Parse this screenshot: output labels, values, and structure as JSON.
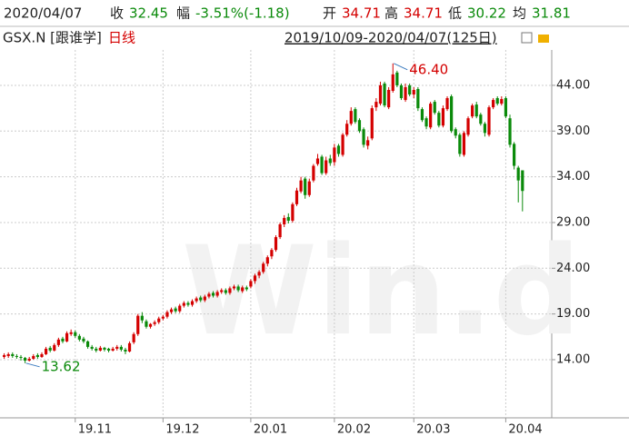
{
  "header": {
    "date": "2020/04/07",
    "items": [
      {
        "label": "收",
        "value": 32.45
      },
      {
        "label": "幅",
        "value": "-3.51%(-1.18)"
      },
      {
        "label": "开",
        "value": 34.71
      },
      {
        "label": "高",
        "value": 34.71
      },
      {
        "label": "低",
        "value": 30.22
      },
      {
        "label": "均",
        "value": 31.81
      }
    ],
    "symbol": "GSX.N [跟谁学]",
    "period": "日线",
    "range": "2019/10/09-2020/04/07(125日)"
  },
  "chart_data": {
    "type": "candlestick",
    "watermark": "Win.d",
    "open": [
      14.3,
      14.4,
      14.6,
      14.4,
      14.3,
      14.2,
      13.9,
      14.1,
      14.5,
      14.3,
      14.6,
      15.3,
      15.0,
      15.6,
      16.3,
      16.0,
      16.8,
      17.0,
      16.6,
      16.3,
      16.0,
      15.4,
      15.2,
      15.0,
      15.3,
      15.2,
      15.0,
      15.2,
      15.4,
      15.1,
      14.9,
      15.9,
      16.8,
      18.8,
      18.2,
      17.6,
      17.9,
      18.1,
      18.5,
      18.7,
      19.2,
      19.6,
      19.3,
      19.9,
      20.2,
      20.0,
      20.4,
      20.8,
      20.5,
      20.9,
      21.3,
      21.0,
      21.4,
      21.6,
      21.3,
      21.8,
      22.0,
      21.5,
      21.9,
      22.0,
      22.6,
      23.2,
      23.6,
      24.5,
      25.3,
      26.0,
      27.4,
      28.8,
      29.6,
      29.2,
      31.0,
      32.4,
      33.8,
      32.0,
      33.6,
      35.4,
      36.2,
      34.4,
      36.0,
      35.6,
      37.4,
      36.4,
      38.6,
      39.8,
      41.4,
      40.2,
      39.2,
      37.4,
      38.2,
      41.6,
      42.0,
      44.2,
      41.6,
      43.4,
      45.4,
      44.0,
      42.4,
      44.0,
      43.0,
      43.6,
      41.4,
      40.4,
      39.4,
      42.2,
      41.0,
      39.6,
      41.4,
      42.8,
      39.2,
      38.6,
      36.4,
      38.6,
      40.6,
      41.9,
      40.8,
      39.8,
      38.6,
      41.6,
      42.6,
      42.0,
      42.6,
      40.4,
      37.6,
      35.0,
      34.71
    ],
    "high": [
      14.7,
      14.8,
      14.8,
      14.6,
      14.5,
      14.3,
      14.3,
      14.6,
      14.7,
      14.8,
      15.4,
      15.5,
      15.8,
      16.4,
      16.5,
      17.1,
      17.3,
      17.2,
      16.8,
      16.5,
      16.1,
      15.6,
      15.4,
      15.5,
      15.4,
      15.3,
      15.4,
      15.6,
      15.6,
      15.3,
      16.0,
      17.0,
      19.0,
      19.2,
      18.4,
      18.0,
      18.3,
      18.7,
      18.9,
      19.4,
      19.7,
      19.8,
      20.1,
      20.4,
      20.4,
      20.6,
      20.9,
      21.0,
      21.1,
      21.4,
      21.5,
      21.6,
      21.8,
      21.8,
      22.0,
      22.2,
      22.2,
      22.1,
      22.1,
      22.8,
      23.4,
      23.8,
      24.7,
      25.4,
      26.2,
      27.6,
      29.0,
      29.8,
      30.0,
      31.2,
      32.8,
      34.0,
      34.0,
      33.8,
      35.4,
      36.5,
      36.4,
      36.2,
      36.4,
      37.6,
      37.6,
      38.8,
      40.2,
      41.6,
      41.6,
      40.4,
      39.4,
      38.4,
      41.8,
      42.6,
      44.4,
      44.4,
      43.8,
      46.4,
      45.6,
      44.2,
      44.2,
      44.2,
      43.8,
      43.8,
      41.6,
      40.6,
      42.2,
      42.4,
      41.2,
      41.8,
      42.8,
      43.0,
      39.4,
      38.8,
      39.0,
      40.6,
      42.0,
      42.2,
      41.0,
      40.0,
      41.8,
      42.6,
      42.8,
      42.8,
      42.8,
      40.8,
      37.8,
      35.2,
      34.71
    ],
    "low": [
      14.1,
      14.2,
      14.2,
      14.1,
      13.9,
      13.62,
      13.8,
      14.0,
      14.1,
      14.2,
      14.5,
      14.8,
      14.9,
      15.4,
      15.8,
      15.9,
      16.6,
      16.4,
      16.0,
      15.8,
      15.2,
      15.0,
      14.8,
      14.9,
      14.9,
      14.8,
      14.9,
      15.0,
      14.9,
      14.6,
      14.8,
      15.7,
      16.6,
      18.0,
      17.4,
      17.4,
      17.7,
      17.9,
      18.3,
      18.5,
      19.0,
      19.1,
      19.1,
      19.7,
      19.8,
      19.8,
      20.2,
      20.3,
      20.3,
      20.7,
      20.8,
      20.8,
      21.2,
      21.1,
      21.1,
      21.6,
      21.4,
      21.3,
      21.5,
      21.8,
      22.3,
      22.9,
      23.4,
      24.2,
      25.0,
      25.8,
      27.2,
      28.5,
      28.9,
      29.0,
      30.8,
      32.2,
      31.6,
      31.8,
      33.4,
      35.2,
      34.2,
      34.2,
      35.2,
      35.2,
      36.2,
      36.2,
      38.4,
      39.6,
      39.8,
      38.8,
      37.2,
      37.0,
      38.0,
      41.2,
      41.8,
      41.6,
      41.4,
      43.2,
      43.8,
      42.4,
      42.2,
      42.8,
      42.6,
      41.2,
      40.0,
      39.2,
      39.2,
      40.8,
      39.4,
      39.4,
      41.2,
      38.8,
      38.2,
      36.2,
      36.2,
      38.4,
      40.4,
      40.4,
      39.6,
      38.4,
      38.4,
      41.4,
      41.8,
      41.8,
      40.4,
      37.2,
      34.8,
      31.2,
      30.22
    ],
    "close": [
      14.5,
      14.6,
      14.4,
      14.3,
      14.2,
      13.9,
      14.1,
      14.4,
      14.3,
      14.6,
      15.2,
      15.0,
      15.6,
      16.2,
      16.0,
      16.9,
      17.0,
      16.6,
      16.2,
      16.0,
      15.4,
      15.2,
      15.0,
      15.3,
      15.1,
      15.0,
      15.2,
      15.4,
      15.1,
      14.9,
      15.8,
      16.8,
      18.8,
      18.3,
      17.6,
      17.9,
      18.1,
      18.5,
      18.7,
      19.2,
      19.5,
      19.3,
      19.9,
      20.2,
      20.0,
      20.4,
      20.7,
      20.5,
      20.9,
      21.2,
      21.0,
      21.4,
      21.6,
      21.3,
      21.8,
      22.0,
      21.6,
      21.9,
      21.7,
      22.6,
      23.2,
      23.6,
      24.5,
      25.2,
      26.0,
      27.4,
      28.8,
      29.5,
      29.2,
      31.0,
      32.5,
      33.6,
      32.0,
      33.5,
      35.2,
      36.0,
      34.4,
      35.8,
      35.5,
      37.2,
      36.5,
      38.6,
      39.8,
      41.2,
      40.0,
      39.0,
      37.5,
      38.0,
      41.5,
      42.2,
      44.0,
      41.8,
      43.5,
      45.2,
      44.0,
      42.6,
      43.8,
      43.0,
      43.5,
      41.5,
      40.2,
      39.5,
      42.0,
      41.0,
      39.6,
      41.5,
      42.6,
      39.0,
      38.5,
      36.5,
      38.8,
      40.4,
      41.8,
      40.6,
      39.8,
      38.8,
      41.6,
      42.4,
      42.0,
      42.5,
      40.6,
      37.5,
      35.2,
      33.6,
      32.45
    ],
    "up_color": "#d40000",
    "down_color": "#0a8a0a",
    "xlim": [
      -1,
      131
    ],
    "xticks": [
      {
        "value": 17,
        "label": "19.11"
      },
      {
        "value": 38,
        "label": "19.12"
      },
      {
        "value": 59,
        "label": "20.01"
      },
      {
        "value": 79,
        "label": "20.02"
      },
      {
        "value": 98,
        "label": "20.03"
      },
      {
        "value": 120,
        "label": "20.04"
      }
    ],
    "ylim": [
      7.64,
      47.87
    ],
    "yticks": [
      {
        "value": 14,
        "label": "14.00"
      },
      {
        "value": 19,
        "label": "19.00"
      },
      {
        "value": 24,
        "label": "24.00"
      },
      {
        "value": 29,
        "label": "29.00"
      },
      {
        "value": 34,
        "label": "34.00"
      },
      {
        "value": 39,
        "label": "39.00"
      },
      {
        "value": 44,
        "label": "44.00"
      }
    ],
    "grid": true,
    "annotations": [
      {
        "value": 46.4,
        "label": "46.40",
        "at": "high"
      },
      {
        "value": 13.62,
        "label": "13.62",
        "at": "low"
      }
    ]
  }
}
